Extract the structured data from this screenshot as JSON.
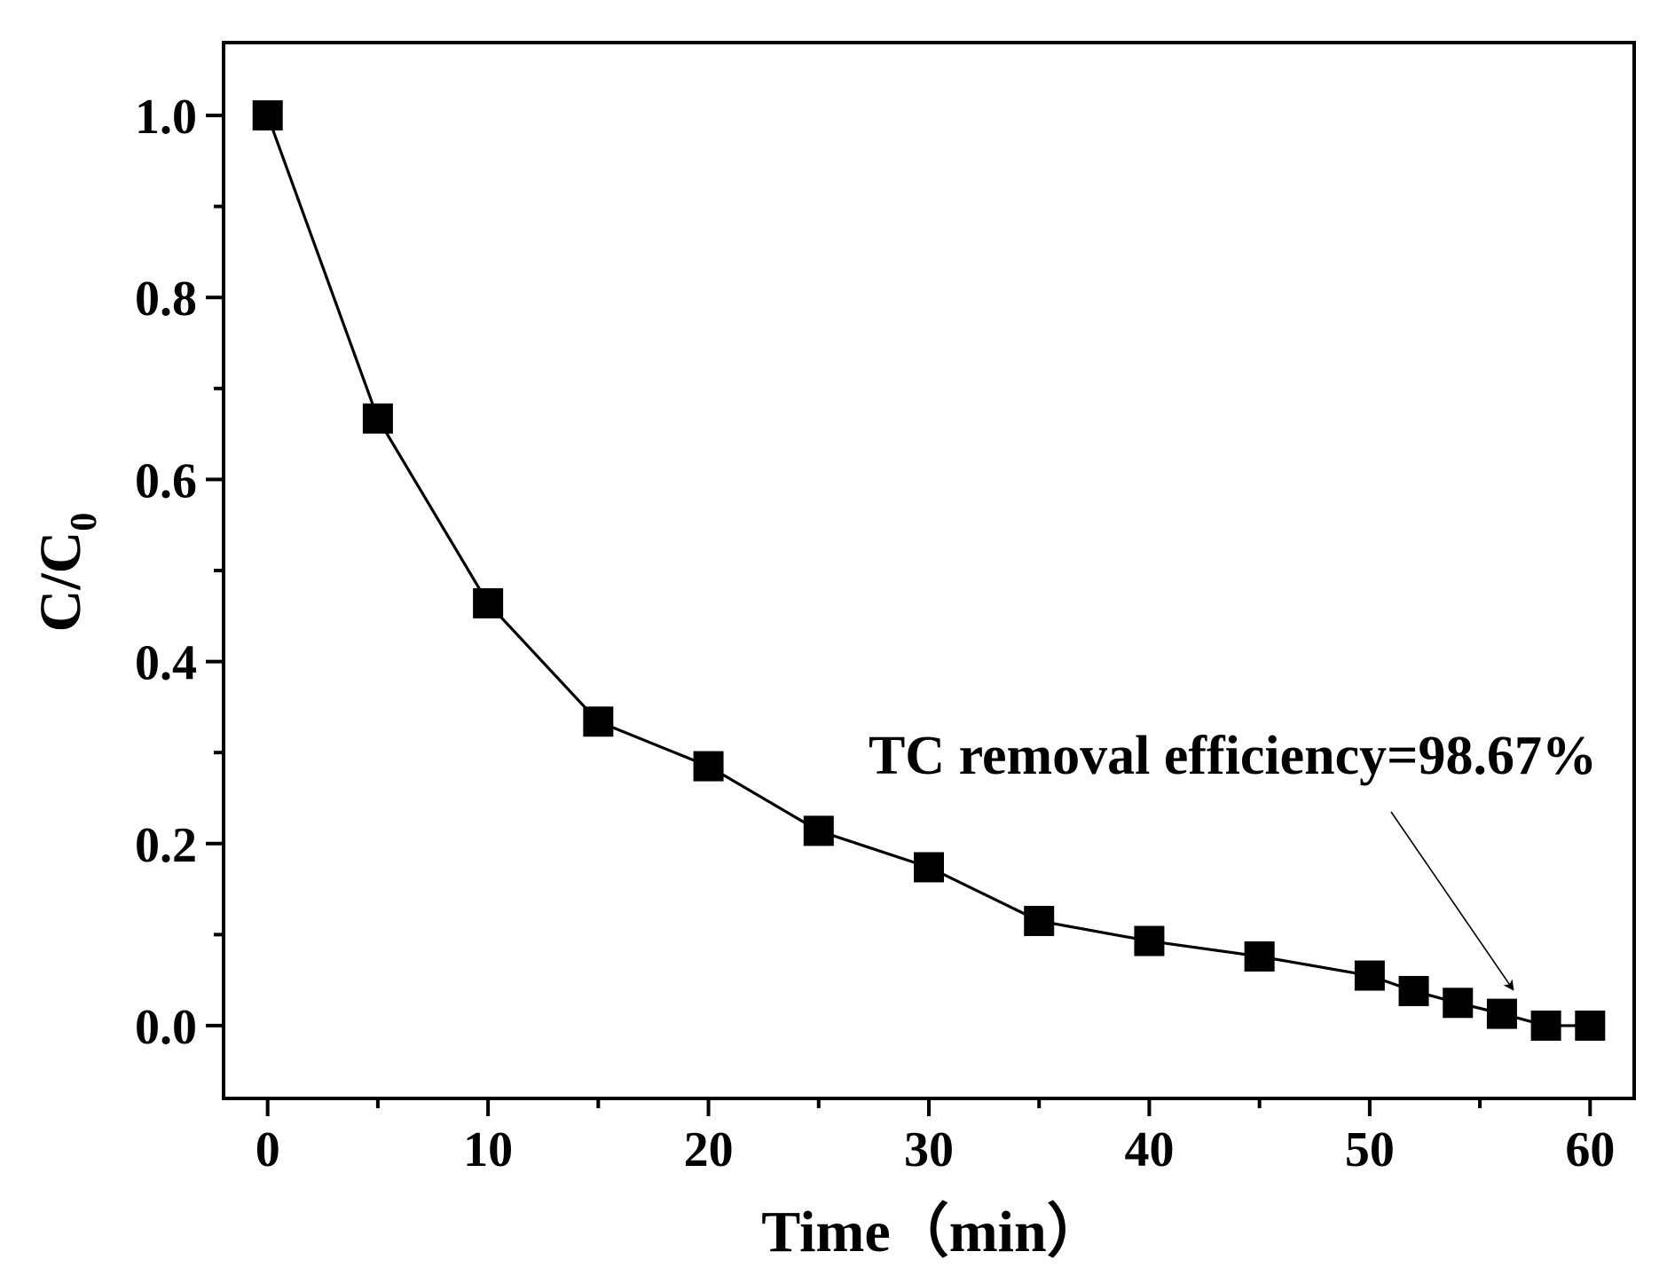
{
  "chart_data": {
    "type": "line",
    "title": "",
    "xlabel": "Time（min）",
    "ylabel": "C/C",
    "ylabel_subscript": "0",
    "xlim": [
      -2,
      62
    ],
    "ylim": [
      -0.08,
      1.08
    ],
    "x_ticks": [
      0,
      10,
      20,
      30,
      40,
      50,
      60
    ],
    "x_tick_labels": [
      "0",
      "10",
      "20",
      "30",
      "40",
      "50",
      "60"
    ],
    "x_minor_ticks": [
      5,
      15,
      25,
      35,
      45,
      55
    ],
    "y_ticks": [
      0.0,
      0.2,
      0.4,
      0.6,
      0.8,
      1.0
    ],
    "y_tick_labels": [
      "0.0",
      "0.2",
      "0.4",
      "0.6",
      "0.8",
      "1.0"
    ],
    "y_minor_ticks": [
      0.1,
      0.3,
      0.5,
      0.7,
      0.9
    ],
    "grid": false,
    "series": [
      {
        "name": "TC",
        "marker": "square",
        "color": "#000000",
        "x": [
          0,
          5,
          10,
          15,
          20,
          25,
          30,
          35,
          40,
          45,
          50,
          52,
          54,
          56,
          58,
          60
        ],
        "y": [
          1.0,
          0.667,
          0.464,
          0.334,
          0.285,
          0.214,
          0.174,
          0.115,
          0.093,
          0.076,
          0.055,
          0.038,
          0.025,
          0.013,
          0.0,
          0.0
        ]
      }
    ],
    "annotations": [
      {
        "text": "TC removal efficiency=98.67%",
        "x": 56.5,
        "y": 0.03
      }
    ]
  }
}
